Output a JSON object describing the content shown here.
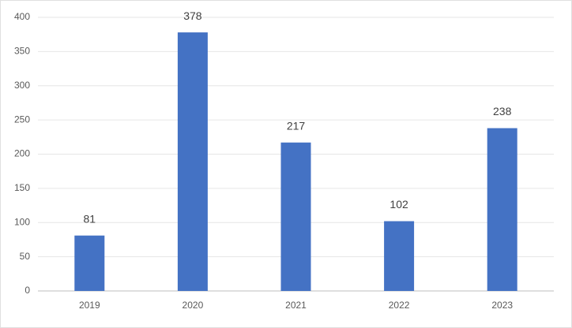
{
  "chart_data": {
    "type": "bar",
    "categories": [
      "2019",
      "2020",
      "2021",
      "2022",
      "2023"
    ],
    "values": [
      81,
      378,
      217,
      102,
      238
    ],
    "color": "#4472c4",
    "ylim": [
      0,
      400
    ],
    "yticks": [
      0,
      50,
      100,
      150,
      200,
      250,
      300,
      350,
      400
    ],
    "grid": true
  }
}
